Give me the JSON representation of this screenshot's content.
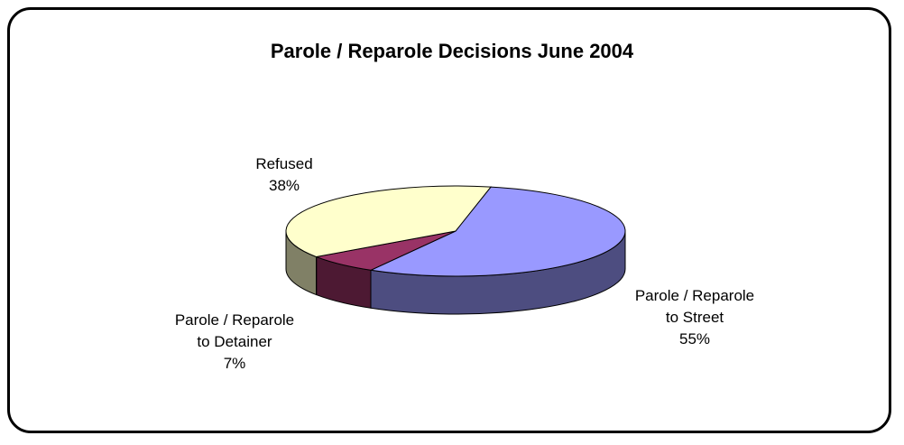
{
  "chart_data": {
    "type": "pie",
    "title": "Parole / Reparole Decisions June 2004",
    "slices": [
      {
        "label_lines": [
          "Parole / Reparole",
          "to Street"
        ],
        "percent_label": "55%",
        "value": 55,
        "color": "#9999ff",
        "side_color": "#4d4d80"
      },
      {
        "label_lines": [
          "Parole / Reparole",
          "to Detainer"
        ],
        "percent_label": "7%",
        "value": 7,
        "color": "#993366",
        "side_color": "#4d1933"
      },
      {
        "label_lines": [
          "Refused"
        ],
        "percent_label": "38%",
        "value": 38,
        "color": "#ffffcc",
        "side_color": "#808066"
      }
    ]
  }
}
